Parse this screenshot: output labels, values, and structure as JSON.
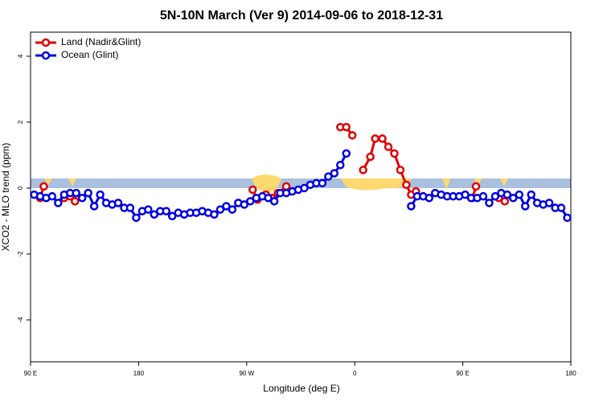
{
  "chart_data": {
    "type": "line",
    "title": "5N-10N March (Ver 9)   2014-09-06 to 2018-12-31",
    "x_label": "Longitude (deg E)",
    "y_label": "XCO2 - MLO trend (ppm)",
    "xlim": [
      90,
      540
    ],
    "ylim": [
      -5.27,
      4.73
    ],
    "xticks": [
      {
        "value": 90,
        "label": "90 E"
      },
      180,
      {
        "value": 270,
        "label": "90 W"
      },
      {
        "value": 360,
        "label": "0"
      },
      {
        "value": 450,
        "label": "90 E"
      },
      {
        "value": 540,
        "label": "180"
      }
    ],
    "yticks": [
      -4,
      -2,
      0,
      2,
      4
    ],
    "legend": "top-left",
    "series": [
      {
        "name": "Land (Nadir&Glint)",
        "color": "#e00000",
        "x": [
          98,
          101,
          110,
          118,
          123,
          127,
          200,
          275,
          279,
          283,
          286,
          291,
          296,
          303,
          325,
          348,
          353,
          358,
          362,
          367,
          373,
          377,
          383,
          388,
          393,
          398,
          403,
          407,
          411,
          435,
          458,
          461,
          470,
          480,
          485
        ],
        "values": [
          -0.3,
          0.05,
          null,
          -0.3,
          -0.25,
          -0.4,
          null,
          -0.05,
          -0.35,
          null,
          -0.2,
          -0.3,
          -0.15,
          0.05,
          null,
          1.85,
          1.85,
          1.6,
          null,
          0.55,
          0.95,
          1.5,
          1.5,
          1.25,
          1.05,
          0.55,
          0.1,
          -0.2,
          -0.1,
          null,
          -0.3,
          0.05,
          null,
          -0.3,
          -0.4
        ]
      },
      {
        "name": "Ocean (Glint)",
        "color": "#0000e0",
        "x": [
          93,
          98,
          103,
          108,
          113,
          118,
          123,
          128,
          133,
          138,
          143,
          148,
          153,
          158,
          163,
          168,
          173,
          178,
          183,
          188,
          193,
          198,
          203,
          208,
          213,
          218,
          223,
          228,
          233,
          238,
          243,
          248,
          253,
          258,
          263,
          268,
          273,
          278,
          283,
          288,
          293,
          298,
          303,
          308,
          313,
          318,
          323,
          328,
          333,
          338,
          343,
          348,
          353,
          380,
          407,
          412,
          417,
          422,
          427,
          432,
          437,
          442,
          447,
          452,
          457,
          462,
          467,
          472,
          477,
          482,
          487,
          492,
          497,
          502,
          507,
          512,
          517,
          522,
          527,
          532,
          537
        ],
        "values": [
          -0.2,
          -0.25,
          -0.3,
          -0.25,
          -0.45,
          -0.2,
          -0.15,
          -0.15,
          -0.3,
          -0.15,
          -0.55,
          -0.2,
          -0.45,
          -0.5,
          -0.45,
          -0.6,
          -0.6,
          -0.9,
          -0.7,
          -0.65,
          -0.8,
          -0.7,
          -0.7,
          -0.85,
          -0.75,
          -0.8,
          -0.75,
          -0.75,
          -0.7,
          -0.75,
          -0.8,
          -0.65,
          -0.55,
          -0.65,
          -0.45,
          -0.5,
          -0.4,
          -0.3,
          -0.25,
          -0.3,
          -0.4,
          -0.15,
          -0.15,
          -0.1,
          -0.05,
          0.0,
          0.1,
          0.15,
          0.15,
          0.35,
          0.45,
          0.7,
          1.05,
          null,
          -0.55,
          -0.25,
          -0.25,
          -0.3,
          -0.15,
          -0.2,
          -0.25,
          -0.25,
          -0.25,
          -0.2,
          -0.3,
          -0.3,
          -0.25,
          -0.45,
          -0.25,
          -0.15,
          -0.2,
          -0.3,
          -0.2,
          -0.55,
          -0.2,
          -0.45,
          -0.5,
          -0.45,
          -0.6,
          -0.6,
          -0.9
        ]
      }
    ]
  }
}
